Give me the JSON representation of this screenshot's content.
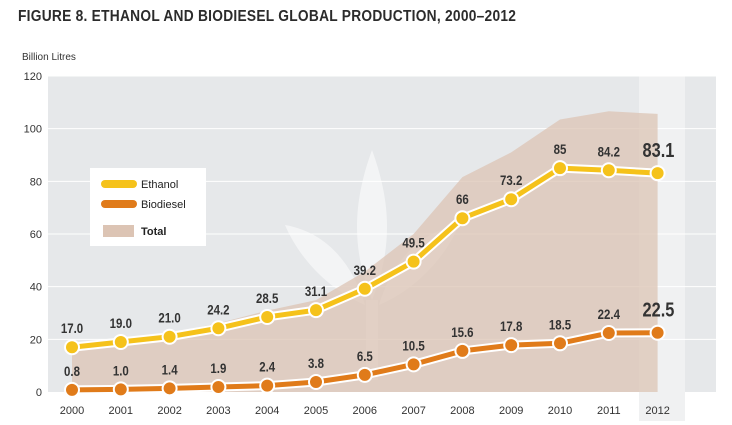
{
  "title": "FIGURE 8. ETHANOL AND BIODIESEL GLOBAL PRODUCTION, 2000–2012",
  "colors": {
    "background": "#ffffff",
    "plot_bg": "#e6e8ea",
    "highlight_column": "#f0f1f2",
    "ethanol": "#f5c21b",
    "biodiesel": "#e07b1a",
    "total": "#dcc4b4",
    "gridline": "#ffffff",
    "text": "#333333"
  },
  "chart_data": {
    "type": "line",
    "title": "FIGURE 8. ETHANOL AND BIODIESEL GLOBAL PRODUCTION, 2000–2012",
    "ylabel": "Billion Litres",
    "xlabel": "",
    "categories": [
      "2000",
      "2001",
      "2002",
      "2003",
      "2004",
      "2005",
      "2006",
      "2007",
      "2008",
      "2009",
      "2010",
      "2011",
      "2012"
    ],
    "ylim": [
      0,
      120
    ],
    "yticks": [
      0,
      20,
      40,
      60,
      80,
      100,
      120
    ],
    "grid": true,
    "legend": "left-middle",
    "highlight_category": "2012",
    "series": [
      {
        "name": "Ethanol",
        "values": [
          17.0,
          19.0,
          21.0,
          24.2,
          28.5,
          31.1,
          39.2,
          49.5,
          66,
          73.2,
          85,
          84.2,
          83.1
        ],
        "labels": [
          "17.0",
          "19.0",
          "21.0",
          "24.2",
          "28.5",
          "31.1",
          "39.2",
          "49.5",
          "66",
          "73.2",
          "85",
          "84.2",
          "83.1"
        ],
        "color": "#f5c21b"
      },
      {
        "name": "Biodiesel",
        "values": [
          0.8,
          1.0,
          1.4,
          1.9,
          2.4,
          3.8,
          6.5,
          10.5,
          15.6,
          17.8,
          18.5,
          22.4,
          22.5
        ],
        "labels": [
          "0.8",
          "1.0",
          "1.4",
          "1.9",
          "2.4",
          "3.8",
          "6.5",
          "10.5",
          "15.6",
          "17.8",
          "18.5",
          "22.4",
          "22.5"
        ],
        "color": "#e07b1a"
      },
      {
        "name": "Total",
        "type": "area",
        "values": [
          17.8,
          20.0,
          22.4,
          26.1,
          30.9,
          34.9,
          45.7,
          60.0,
          81.6,
          91.0,
          103.5,
          106.6,
          105.6
        ],
        "color": "#dcc4b4"
      }
    ]
  }
}
